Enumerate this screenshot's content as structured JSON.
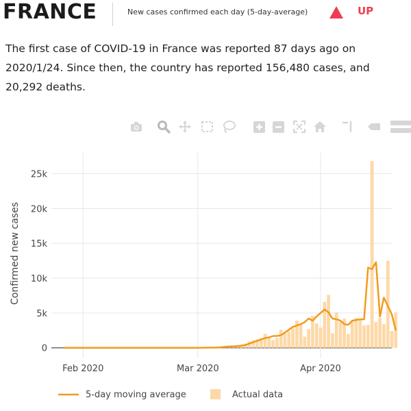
{
  "header": {
    "country": "FRANCE",
    "metric_label": "New cases confirmed each day (5-day-average)",
    "trend_label": "UP",
    "trend_color": "#ee3d52",
    "trend_icon": "triangle-up-icon"
  },
  "summary": {
    "text": "The first case of COVID-19 in France was reported 87 days ago on 2020/1/24. Since then, the country has reported 156,480 cases, and 20,292 deaths."
  },
  "modebar": {
    "icons": [
      "camera-icon",
      "zoom-icon",
      "pan-icon",
      "box-select-icon",
      "lasso-select-icon",
      "zoom-in-icon",
      "zoom-out-icon",
      "autoscale-icon",
      "reset-axes-icon",
      "spike-lines-icon",
      "hover-closest-icon",
      "hover-compare-icon"
    ]
  },
  "chart_data": {
    "type": "bar",
    "ylabel": "Confirmed new cases",
    "xlabel": "",
    "x_start": "2020-01-24",
    "x_end": "2020-04-19",
    "ylim": [
      -1500,
      28000
    ],
    "xticks": [
      {
        "date": "2020-02-01",
        "label": "Feb 2020"
      },
      {
        "date": "2020-03-01",
        "label": "Mar 2020"
      },
      {
        "date": "2020-04-01",
        "label": "Apr 2020"
      }
    ],
    "yticks": [
      {
        "value": 0,
        "label": "0"
      },
      {
        "value": 5000,
        "label": "5k"
      },
      {
        "value": 10000,
        "label": "10k"
      },
      {
        "value": 15000,
        "label": "15k"
      },
      {
        "value": 20000,
        "label": "20k"
      },
      {
        "value": 25000,
        "label": "25k"
      }
    ],
    "grid": true,
    "legend_position": "bottom",
    "series": [
      {
        "name": "Actual data",
        "kind": "bar",
        "color": "#fdd9a8",
        "values": [
          3,
          0,
          0,
          0,
          1,
          0,
          0,
          0,
          1,
          0,
          0,
          0,
          0,
          0,
          0,
          5,
          0,
          0,
          0,
          1,
          0,
          0,
          0,
          1,
          0,
          0,
          0,
          0,
          0,
          0,
          0,
          0,
          0,
          0,
          0,
          0,
          1,
          0,
          0,
          50,
          0,
          0,
          40,
          20,
          90,
          200,
          300,
          400,
          500,
          600,
          900,
          1100,
          1200,
          1400,
          2000,
          1600,
          1100,
          1400,
          2600,
          2100,
          2400,
          2800,
          3900,
          3400,
          1600,
          2700,
          4600,
          3500,
          2900,
          6600,
          7600,
          2100,
          5100,
          3700,
          4200,
          2000,
          3800,
          4300,
          4100,
          3200,
          3300,
          26800,
          3700,
          4300,
          3400,
          12500,
          2400,
          5100
        ]
      },
      {
        "name": "5-day moving average",
        "kind": "line",
        "color": "#f29a1d",
        "values": [
          1,
          1,
          1,
          1,
          1,
          1,
          1,
          1,
          1,
          1,
          1,
          1,
          1,
          1,
          1,
          1,
          1,
          1,
          1,
          1,
          1,
          1,
          1,
          1,
          1,
          1,
          1,
          1,
          1,
          1,
          1,
          1,
          1,
          1,
          1,
          10,
          20,
          20,
          20,
          50,
          80,
          150,
          200,
          200,
          250,
          300,
          400,
          600,
          800,
          1000,
          1200,
          1400,
          1500,
          1700,
          1700,
          1800,
          2200,
          2600,
          3000,
          3200,
          3400,
          3700,
          4200,
          3900,
          4500,
          5000,
          5500,
          5100,
          4200,
          4100,
          3900,
          3400,
          3300,
          3900,
          4000,
          4100,
          4100,
          11500,
          11300,
          12300,
          4500,
          7200,
          6000,
          4800,
          2500
        ]
      }
    ]
  },
  "legend": {
    "line_label": "5-day moving average",
    "bar_label": "Actual data"
  }
}
